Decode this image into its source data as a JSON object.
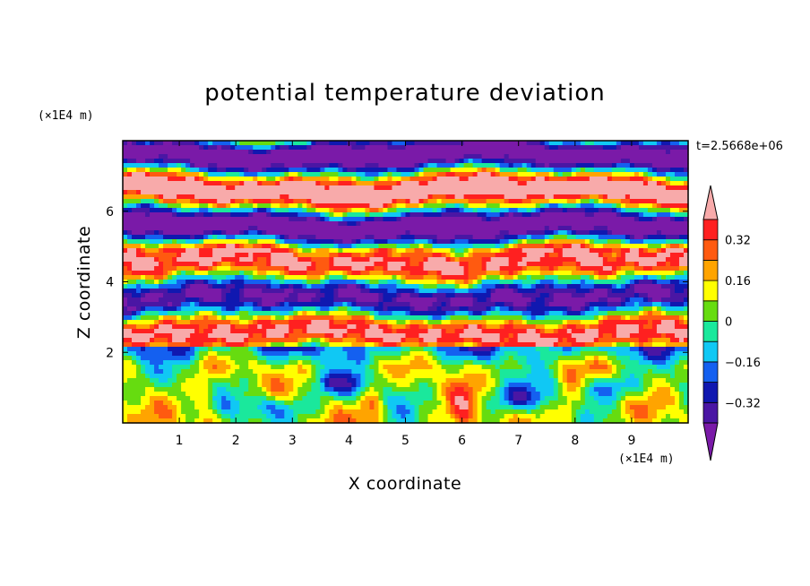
{
  "chart_data": {
    "type": "heatmap",
    "title": "potential temperature deviation",
    "xlabel": "X coordinate",
    "ylabel": "Z coordinate",
    "x_unit": "(×1E4 m)",
    "y_unit": "(×1E4 m)",
    "time_label": "t=2.5668e+06",
    "xlim": [
      0,
      10
    ],
    "ylim": [
      0,
      8
    ],
    "x_ticks": [
      "1",
      "2",
      "3",
      "4",
      "5",
      "6",
      "7",
      "8",
      "9"
    ],
    "y_ticks": [
      "2",
      "4",
      "6"
    ],
    "colorbar": {
      "levels": [
        -0.48,
        -0.4,
        -0.32,
        -0.24,
        -0.16,
        -0.08,
        0,
        0.08,
        0.16,
        0.24,
        0.32,
        0.4
      ],
      "labels": [
        "0.32",
        "0.16",
        "0",
        "−0.16",
        "−0.32"
      ],
      "label_values": [
        0.32,
        0.16,
        0,
        -0.16,
        -0.32
      ],
      "colors": [
        "#7a1aa8",
        "#4a16a4",
        "#1018b0",
        "#1460f0",
        "#10c8f4",
        "#1ae89c",
        "#66dc10",
        "#ffff00",
        "#ffa400",
        "#ff5a10",
        "#ff2020",
        "#f8aaaa"
      ],
      "extend": "both"
    }
  }
}
